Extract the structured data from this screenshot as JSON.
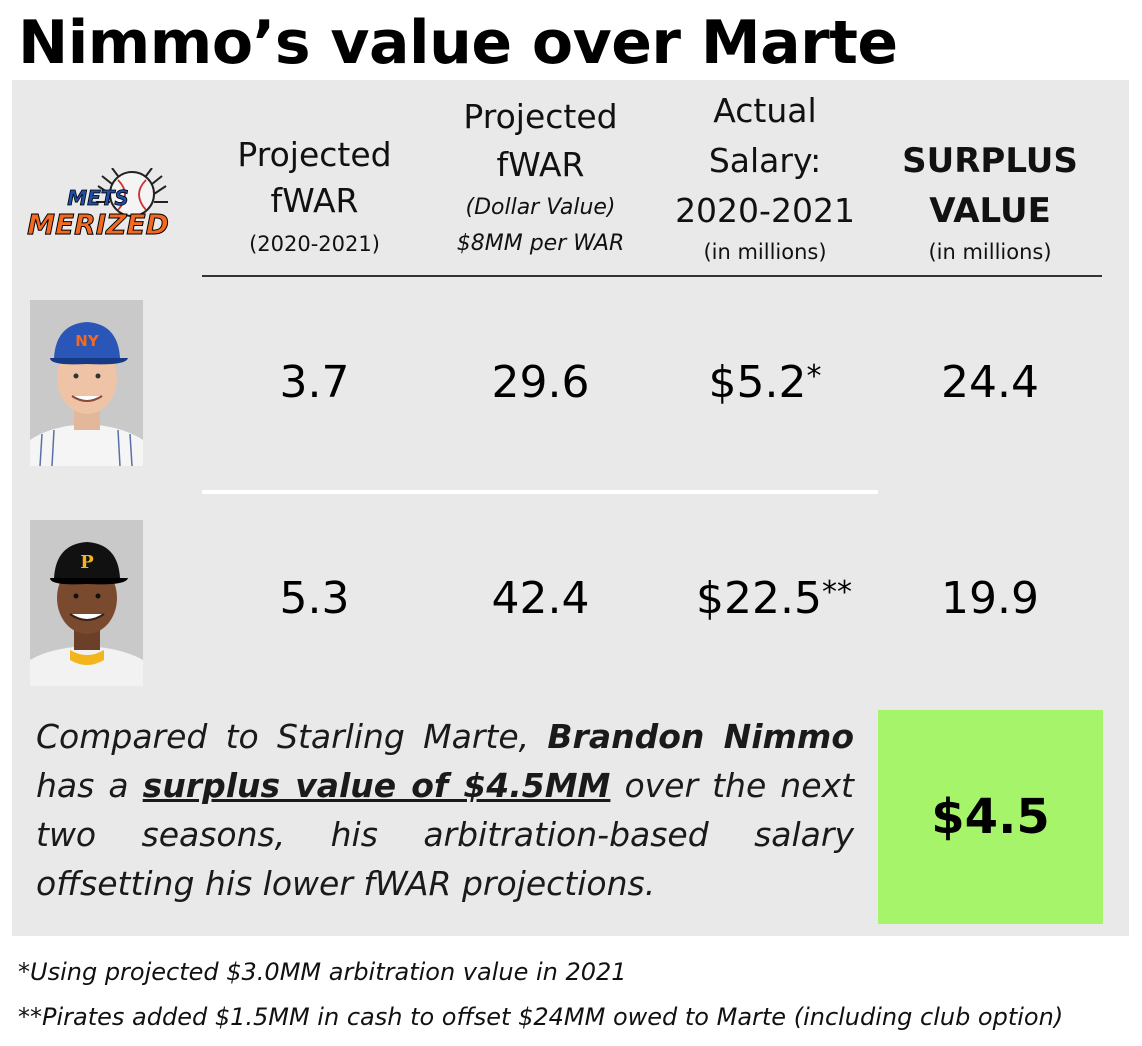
{
  "title": "Nimmo’s value over Marte",
  "logo": {
    "line1": "METS",
    "line2": "MERIZED"
  },
  "headers": {
    "col1": {
      "line1": "Projected",
      "line2": "fWAR",
      "sub": "(2020-2021)"
    },
    "col2": {
      "line1": "Projected",
      "line2": "fWAR",
      "sub1": "(Dollar Value)",
      "sub2": "$8MM per WAR"
    },
    "col3": {
      "line1": "Actual",
      "line2": "Salary:",
      "line3": "2020-2021",
      "sub": "(in millions)"
    },
    "col4": {
      "line1": "SURPLUS",
      "line2": "VALUE",
      "sub": "(in millions)"
    }
  },
  "rows": [
    {
      "player_cap": "NY",
      "fwar": "3.7",
      "dollar_value": "29.6",
      "salary": "$5.2",
      "salary_mark": "*",
      "surplus": "24.4"
    },
    {
      "player_cap": "P",
      "fwar": "5.3",
      "dollar_value": "42.4",
      "salary": "$22.5",
      "salary_mark": "**",
      "surplus": "19.9"
    }
  ],
  "summary": {
    "part1": "Compared to Starling Marte, ",
    "bold_name": "Brandon Nimmo",
    "part2": " has a ",
    "underlined": "surplus value of $4.5MM",
    "part3": " over the next two seasons, his arbitration-based salary offsetting his lower fWAR projections."
  },
  "surplus_total": "$4.5",
  "footnotes": [
    "*Using projected $3.0MM arbitration value in 2021",
    "**Pirates added $1.5MM in cash to offset $24MM owed to Marte (including club option)"
  ],
  "colors": {
    "panel": "#e9e9e9",
    "highlight": "#a6f46a",
    "mets_blue": "#1f4fa8",
    "mets_orange": "#f26a21",
    "pirates_gold": "#f2b51c"
  }
}
